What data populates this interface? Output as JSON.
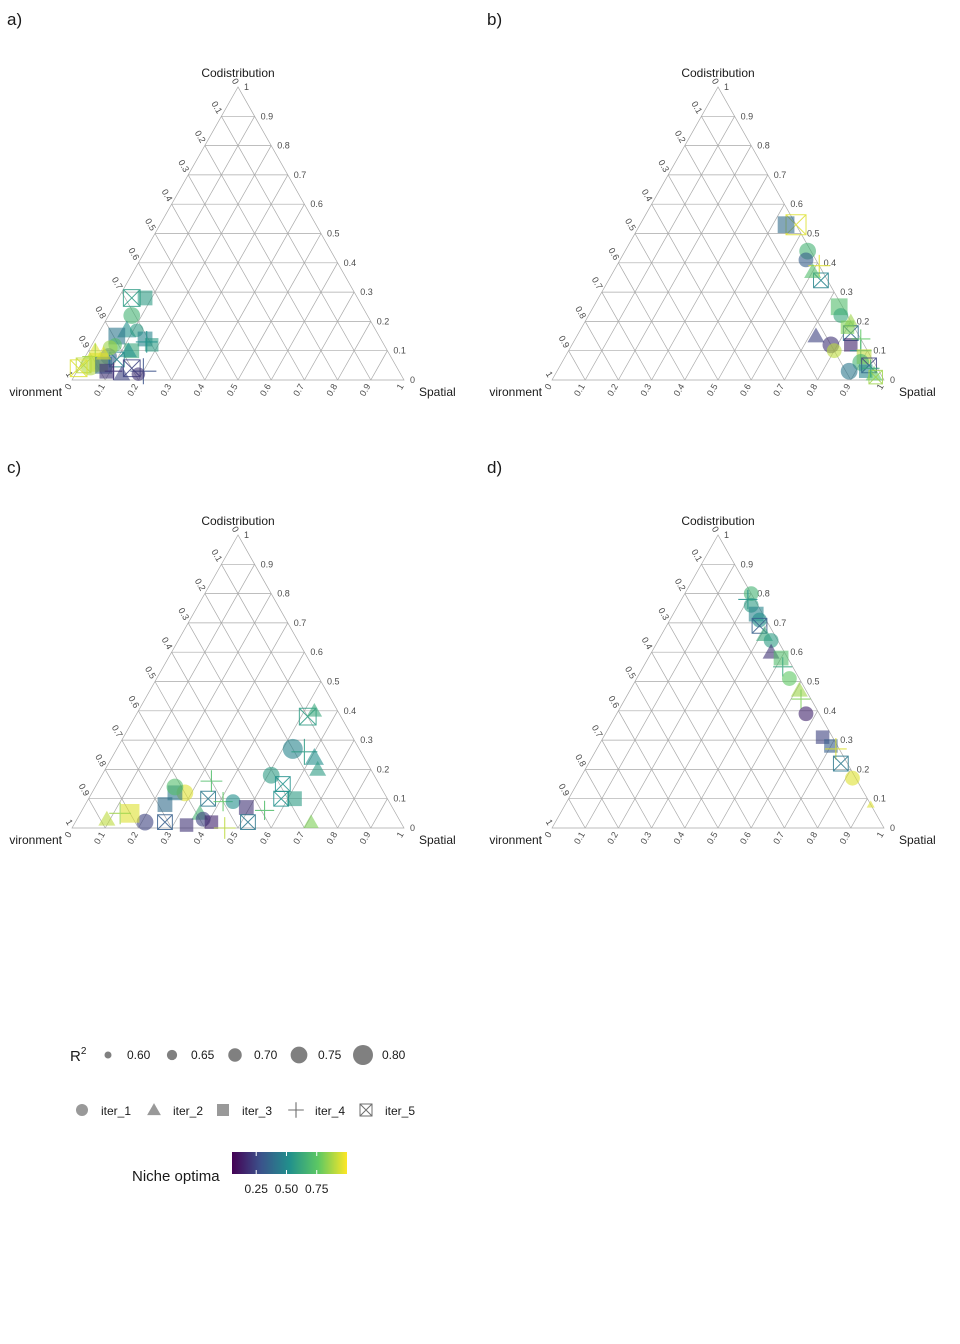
{
  "panels": [
    {
      "letter": "a)"
    },
    {
      "letter": "b)"
    },
    {
      "letter": "c)"
    },
    {
      "letter": "d)"
    }
  ],
  "axes": {
    "top": "Codistribution",
    "left": "vironment",
    "right": "Spatial",
    "ticks": [
      "0",
      "0.1",
      "0.2",
      "0.3",
      "0.4",
      "0.5",
      "0.6",
      "0.7",
      "0.8",
      "0.9",
      "1"
    ]
  },
  "legend": {
    "r2_title": "R",
    "r2_sup": "2",
    "r2_values": [
      "0.60",
      "0.65",
      "0.70",
      "0.75",
      "0.80"
    ],
    "shapes": [
      "iter_1",
      "iter_2",
      "iter_3",
      "iter_4",
      "iter_5"
    ],
    "color_title": "Niche optima",
    "color_ticks": [
      "0.25",
      "0.50",
      "0.75"
    ],
    "colors": [
      "#440154",
      "#3b528b",
      "#21908c",
      "#5dc863",
      "#fde725"
    ]
  },
  "chart_data": [
    {
      "type": "scatter",
      "components": [
        "Environment",
        "Codistribution",
        "Spatial"
      ],
      "points": [
        {
          "codist": 0.28,
          "spatial": 0.04,
          "shape": "iter_5",
          "niche": 0.55,
          "r2": 0.75
        },
        {
          "codist": 0.28,
          "spatial": 0.08,
          "shape": "iter_3",
          "niche": 0.55,
          "r2": 0.72
        },
        {
          "codist": 0.22,
          "spatial": 0.07,
          "shape": "iter_1",
          "niche": 0.65,
          "r2": 0.75
        },
        {
          "codist": 0.17,
          "spatial": 0.08,
          "shape": "iter_2",
          "niche": 0.5,
          "r2": 0.75
        },
        {
          "codist": 0.17,
          "spatial": 0.11,
          "shape": "iter_1",
          "niche": 0.55,
          "r2": 0.7
        },
        {
          "codist": 0.14,
          "spatial": 0.15,
          "shape": "iter_3",
          "niche": 0.45,
          "r2": 0.72
        },
        {
          "codist": 0.15,
          "spatial": 0.06,
          "shape": "iter_3",
          "niche": 0.4,
          "r2": 0.75
        },
        {
          "codist": 0.12,
          "spatial": 0.07,
          "shape": "iter_1",
          "niche": 0.7,
          "r2": 0.7
        },
        {
          "codist": 0.1,
          "spatial": 0.02,
          "shape": "iter_2",
          "niche": 0.95,
          "r2": 0.72
        },
        {
          "codist": 0.08,
          "spatial": 0.03,
          "shape": "iter_4",
          "niche": 0.85,
          "r2": 0.8
        },
        {
          "codist": 0.08,
          "spatial": 0.07,
          "shape": "iter_1",
          "niche": 0.3,
          "r2": 0.75
        },
        {
          "codist": 0.07,
          "spatial": 0.1,
          "shape": "iter_5",
          "niche": 0.45,
          "r2": 0.72
        },
        {
          "codist": 0.06,
          "spatial": 0.05,
          "shape": "iter_3",
          "niche": 0.95,
          "r2": 0.78
        },
        {
          "codist": 0.05,
          "spatial": 0.01,
          "shape": "iter_5",
          "niche": 0.9,
          "r2": 0.72
        },
        {
          "codist": 0.05,
          "spatial": 0.03,
          "shape": "iter_1",
          "niche": 0.88,
          "r2": 0.8
        },
        {
          "codist": 0.05,
          "spatial": 0.07,
          "shape": "iter_3",
          "niche": 0.35,
          "r2": 0.75
        },
        {
          "codist": 0.04,
          "spatial": 0.16,
          "shape": "iter_5",
          "niche": 0.2,
          "r2": 0.75
        },
        {
          "codist": 0.03,
          "spatial": 0.2,
          "shape": "iter_4",
          "niche": 0.25,
          "r2": 0.8
        },
        {
          "codist": 0.02,
          "spatial": 0.19,
          "shape": "iter_1",
          "niche": 0.15,
          "r2": 0.7
        },
        {
          "codist": 0.02,
          "spatial": 0.14,
          "shape": "iter_2",
          "niche": 0.2,
          "r2": 0.72
        },
        {
          "codist": 0.03,
          "spatial": 0.09,
          "shape": "iter_3",
          "niche": 0.15,
          "r2": 0.72
        },
        {
          "codist": 0.03,
          "spatial": 0.11,
          "shape": "iter_4",
          "niche": 0.15,
          "r2": 0.7
        },
        {
          "codist": 0.1,
          "spatial": 0.13,
          "shape": "iter_3",
          "niche": 0.6,
          "r2": 0.72
        },
        {
          "codist": 0.12,
          "spatial": 0.18,
          "shape": "iter_3",
          "niche": 0.55,
          "r2": 0.7
        },
        {
          "codist": 0.1,
          "spatial": 0.12,
          "shape": "iter_2",
          "niche": 0.5,
          "r2": 0.72
        },
        {
          "codist": 0.13,
          "spatial": 0.16,
          "shape": "iter_4",
          "niche": 0.5,
          "r2": 0.75
        },
        {
          "codist": 0.11,
          "spatial": 0.06,
          "shape": "iter_1",
          "niche": 0.85,
          "r2": 0.72
        },
        {
          "codist": 0.09,
          "spatial": 0.05,
          "shape": "iter_2",
          "niche": 0.95,
          "r2": 0.7
        },
        {
          "codist": 0.04,
          "spatial": 0.0,
          "shape": "iter_5",
          "niche": 0.95,
          "r2": 0.75
        }
      ]
    },
    {
      "type": "scatter",
      "components": [
        "Environment",
        "Codistribution",
        "Spatial"
      ],
      "points": [
        {
          "codist": 0.53,
          "spatial": 0.47,
          "shape": "iter_5",
          "niche": 0.95,
          "r2": 0.8
        },
        {
          "codist": 0.53,
          "spatial": 0.44,
          "shape": "iter_3",
          "niche": 0.35,
          "r2": 0.75
        },
        {
          "codist": 0.44,
          "spatial": 0.55,
          "shape": "iter_1",
          "niche": 0.65,
          "r2": 0.75
        },
        {
          "codist": 0.41,
          "spatial": 0.56,
          "shape": "iter_1",
          "niche": 0.3,
          "r2": 0.72
        },
        {
          "codist": 0.39,
          "spatial": 0.61,
          "shape": "iter_4",
          "niche": 0.95,
          "r2": 0.75
        },
        {
          "codist": 0.34,
          "spatial": 0.64,
          "shape": "iter_5",
          "niche": 0.45,
          "r2": 0.72
        },
        {
          "codist": 0.37,
          "spatial": 0.6,
          "shape": "iter_2",
          "niche": 0.7,
          "r2": 0.72
        },
        {
          "codist": 0.25,
          "spatial": 0.74,
          "shape": "iter_3",
          "niche": 0.7,
          "r2": 0.75
        },
        {
          "codist": 0.22,
          "spatial": 0.76,
          "shape": "iter_1",
          "niche": 0.6,
          "r2": 0.72
        },
        {
          "codist": 0.2,
          "spatial": 0.8,
          "shape": "iter_2",
          "niche": 0.85,
          "r2": 0.7
        },
        {
          "codist": 0.16,
          "spatial": 0.82,
          "shape": "iter_5",
          "niche": 0.35,
          "r2": 0.72
        },
        {
          "codist": 0.15,
          "spatial": 0.72,
          "shape": "iter_2",
          "niche": 0.2,
          "r2": 0.72
        },
        {
          "codist": 0.12,
          "spatial": 0.78,
          "shape": "iter_1",
          "niche": 0.15,
          "r2": 0.75
        },
        {
          "codist": 0.1,
          "spatial": 0.8,
          "shape": "iter_1",
          "niche": 0.9,
          "r2": 0.72
        },
        {
          "codist": 0.12,
          "spatial": 0.84,
          "shape": "iter_3",
          "niche": 0.1,
          "r2": 0.7
        },
        {
          "codist": 0.1,
          "spatial": 0.88,
          "shape": "iter_4",
          "niche": 0.5,
          "r2": 0.75
        },
        {
          "codist": 0.08,
          "spatial": 0.9,
          "shape": "iter_3",
          "niche": 0.9,
          "r2": 0.72
        },
        {
          "codist": 0.06,
          "spatial": 0.9,
          "shape": "iter_1",
          "niche": 0.65,
          "r2": 0.75
        },
        {
          "codist": 0.05,
          "spatial": 0.93,
          "shape": "iter_5",
          "niche": 0.2,
          "r2": 0.72
        },
        {
          "codist": 0.03,
          "spatial": 0.93,
          "shape": "iter_3",
          "niche": 0.45,
          "r2": 0.7
        },
        {
          "codist": 0.02,
          "spatial": 0.96,
          "shape": "iter_2",
          "niche": 0.75,
          "r2": 0.72
        },
        {
          "codist": 0.01,
          "spatial": 0.97,
          "shape": "iter_5",
          "niche": 0.85,
          "r2": 0.7
        },
        {
          "codist": 0.03,
          "spatial": 0.88,
          "shape": "iter_1",
          "niche": 0.4,
          "r2": 0.75
        },
        {
          "codist": 0.04,
          "spatial": 0.94,
          "shape": "iter_4",
          "niche": 0.6,
          "r2": 0.7
        },
        {
          "codist": 0.14,
          "spatial": 0.86,
          "shape": "iter_4",
          "niche": 0.75,
          "r2": 0.72
        },
        {
          "codist": 0.18,
          "spatial": 0.8,
          "shape": "iter_3",
          "niche": 0.8,
          "r2": 0.7
        }
      ]
    },
    {
      "type": "scatter",
      "components": [
        "Environment",
        "Codistribution",
        "Spatial"
      ],
      "points": [
        {
          "codist": 0.38,
          "spatial": 0.52,
          "shape": "iter_5",
          "niche": 0.55,
          "r2": 0.75
        },
        {
          "codist": 0.4,
          "spatial": 0.53,
          "shape": "iter_2",
          "niche": 0.6,
          "r2": 0.7
        },
        {
          "codist": 0.27,
          "spatial": 0.53,
          "shape": "iter_1",
          "niche": 0.45,
          "r2": 0.8
        },
        {
          "codist": 0.26,
          "spatial": 0.57,
          "shape": "iter_4",
          "niche": 0.55,
          "r2": 0.8
        },
        {
          "codist": 0.24,
          "spatial": 0.61,
          "shape": "iter_2",
          "niche": 0.5,
          "r2": 0.75
        },
        {
          "codist": 0.2,
          "spatial": 0.64,
          "shape": "iter_2",
          "niche": 0.55,
          "r2": 0.72
        },
        {
          "codist": 0.18,
          "spatial": 0.51,
          "shape": "iter_1",
          "niche": 0.55,
          "r2": 0.75
        },
        {
          "codist": 0.15,
          "spatial": 0.56,
          "shape": "iter_5",
          "niche": 0.5,
          "r2": 0.72
        },
        {
          "codist": 0.1,
          "spatial": 0.62,
          "shape": "iter_3",
          "niche": 0.55,
          "r2": 0.72
        },
        {
          "codist": 0.02,
          "spatial": 0.71,
          "shape": "iter_2",
          "niche": 0.8,
          "r2": 0.7
        },
        {
          "codist": 0.08,
          "spatial": 0.24,
          "shape": "iter_3",
          "niche": 0.35,
          "r2": 0.72
        },
        {
          "codist": 0.12,
          "spatial": 0.28,
          "shape": "iter_1",
          "niche": 0.95,
          "r2": 0.75
        },
        {
          "codist": 0.12,
          "spatial": 0.25,
          "shape": "iter_3",
          "niche": 0.4,
          "r2": 0.72
        },
        {
          "codist": 0.14,
          "spatial": 0.24,
          "shape": "iter_1",
          "niche": 0.7,
          "r2": 0.75
        },
        {
          "codist": 0.1,
          "spatial": 0.36,
          "shape": "iter_5",
          "niche": 0.4,
          "r2": 0.72
        },
        {
          "codist": 0.09,
          "spatial": 0.41,
          "shape": "iter_4",
          "niche": 0.75,
          "r2": 0.72
        },
        {
          "codist": 0.09,
          "spatial": 0.44,
          "shape": "iter_1",
          "niche": 0.5,
          "r2": 0.72
        },
        {
          "codist": 0.07,
          "spatial": 0.49,
          "shape": "iter_3",
          "niche": 0.15,
          "r2": 0.72
        },
        {
          "codist": 0.05,
          "spatial": 0.36,
          "shape": "iter_2",
          "niche": 0.65,
          "r2": 0.72
        },
        {
          "codist": 0.03,
          "spatial": 0.38,
          "shape": "iter_1",
          "niche": 0.2,
          "r2": 0.72
        },
        {
          "codist": 0.02,
          "spatial": 0.41,
          "shape": "iter_3",
          "niche": 0.1,
          "r2": 0.7
        },
        {
          "codist": 0.0,
          "spatial": 0.46,
          "shape": "iter_4",
          "niche": 0.9,
          "r2": 0.75
        },
        {
          "codist": 0.02,
          "spatial": 0.21,
          "shape": "iter_1",
          "niche": 0.2,
          "r2": 0.75
        },
        {
          "codist": 0.02,
          "spatial": 0.27,
          "shape": "iter_5",
          "niche": 0.3,
          "r2": 0.72
        },
        {
          "codist": 0.01,
          "spatial": 0.34,
          "shape": "iter_3",
          "niche": 0.15,
          "r2": 0.7
        },
        {
          "codist": 0.02,
          "spatial": 0.52,
          "shape": "iter_5",
          "niche": 0.4,
          "r2": 0.72
        },
        {
          "codist": 0.05,
          "spatial": 0.15,
          "shape": "iter_3",
          "niche": 0.95,
          "r2": 0.78
        },
        {
          "codist": 0.03,
          "spatial": 0.09,
          "shape": "iter_2",
          "niche": 0.9,
          "r2": 0.72
        },
        {
          "codist": 0.05,
          "spatial": 0.12,
          "shape": "iter_4",
          "niche": 0.85,
          "r2": 0.75
        },
        {
          "codist": 0.1,
          "spatial": 0.58,
          "shape": "iter_5",
          "niche": 0.5,
          "r2": 0.72
        },
        {
          "codist": 0.06,
          "spatial": 0.55,
          "shape": "iter_4",
          "niche": 0.7,
          "r2": 0.72
        },
        {
          "codist": 0.16,
          "spatial": 0.34,
          "shape": "iter_4",
          "niche": 0.7,
          "r2": 0.75
        }
      ]
    },
    {
      "type": "scatter",
      "components": [
        "Environment",
        "Codistribution",
        "Spatial"
      ],
      "points": [
        {
          "codist": 0.8,
          "spatial": 0.2,
          "shape": "iter_1",
          "niche": 0.65,
          "r2": 0.72
        },
        {
          "codist": 0.78,
          "spatial": 0.2,
          "shape": "iter_4",
          "niche": 0.5,
          "r2": 0.72
        },
        {
          "codist": 0.76,
          "spatial": 0.22,
          "shape": "iter_1",
          "niche": 0.55,
          "r2": 0.72
        },
        {
          "codist": 0.73,
          "spatial": 0.25,
          "shape": "iter_3",
          "niche": 0.45,
          "r2": 0.72
        },
        {
          "codist": 0.71,
          "spatial": 0.27,
          "shape": "iter_1",
          "niche": 0.5,
          "r2": 0.72
        },
        {
          "codist": 0.69,
          "spatial": 0.28,
          "shape": "iter_5",
          "niche": 0.3,
          "r2": 0.72
        },
        {
          "codist": 0.66,
          "spatial": 0.31,
          "shape": "iter_2",
          "niche": 0.6,
          "r2": 0.72
        },
        {
          "codist": 0.64,
          "spatial": 0.34,
          "shape": "iter_1",
          "niche": 0.55,
          "r2": 0.72
        },
        {
          "codist": 0.6,
          "spatial": 0.36,
          "shape": "iter_2",
          "niche": 0.15,
          "r2": 0.72
        },
        {
          "codist": 0.58,
          "spatial": 0.4,
          "shape": "iter_3",
          "niche": 0.7,
          "r2": 0.72
        },
        {
          "codist": 0.55,
          "spatial": 0.42,
          "shape": "iter_4",
          "niche": 0.6,
          "r2": 0.72
        },
        {
          "codist": 0.51,
          "spatial": 0.46,
          "shape": "iter_1",
          "niche": 0.75,
          "r2": 0.72
        },
        {
          "codist": 0.47,
          "spatial": 0.51,
          "shape": "iter_2",
          "niche": 0.85,
          "r2": 0.72
        },
        {
          "codist": 0.44,
          "spatial": 0.53,
          "shape": "iter_4",
          "niche": 0.8,
          "r2": 0.72
        },
        {
          "codist": 0.39,
          "spatial": 0.57,
          "shape": "iter_1",
          "niche": 0.1,
          "r2": 0.72
        },
        {
          "codist": 0.31,
          "spatial": 0.66,
          "shape": "iter_3",
          "niche": 0.2,
          "r2": 0.7
        },
        {
          "codist": 0.28,
          "spatial": 0.7,
          "shape": "iter_3",
          "niche": 0.3,
          "r2": 0.7
        },
        {
          "codist": 0.27,
          "spatial": 0.72,
          "shape": "iter_4",
          "niche": 0.95,
          "r2": 0.75
        },
        {
          "codist": 0.22,
          "spatial": 0.76,
          "shape": "iter_5",
          "niche": 0.4,
          "r2": 0.72
        },
        {
          "codist": 0.17,
          "spatial": 0.82,
          "shape": "iter_1",
          "niche": 0.95,
          "r2": 0.72
        },
        {
          "codist": 0.08,
          "spatial": 0.92,
          "shape": "iter_2",
          "niche": 0.95,
          "r2": 0.6
        }
      ]
    }
  ]
}
